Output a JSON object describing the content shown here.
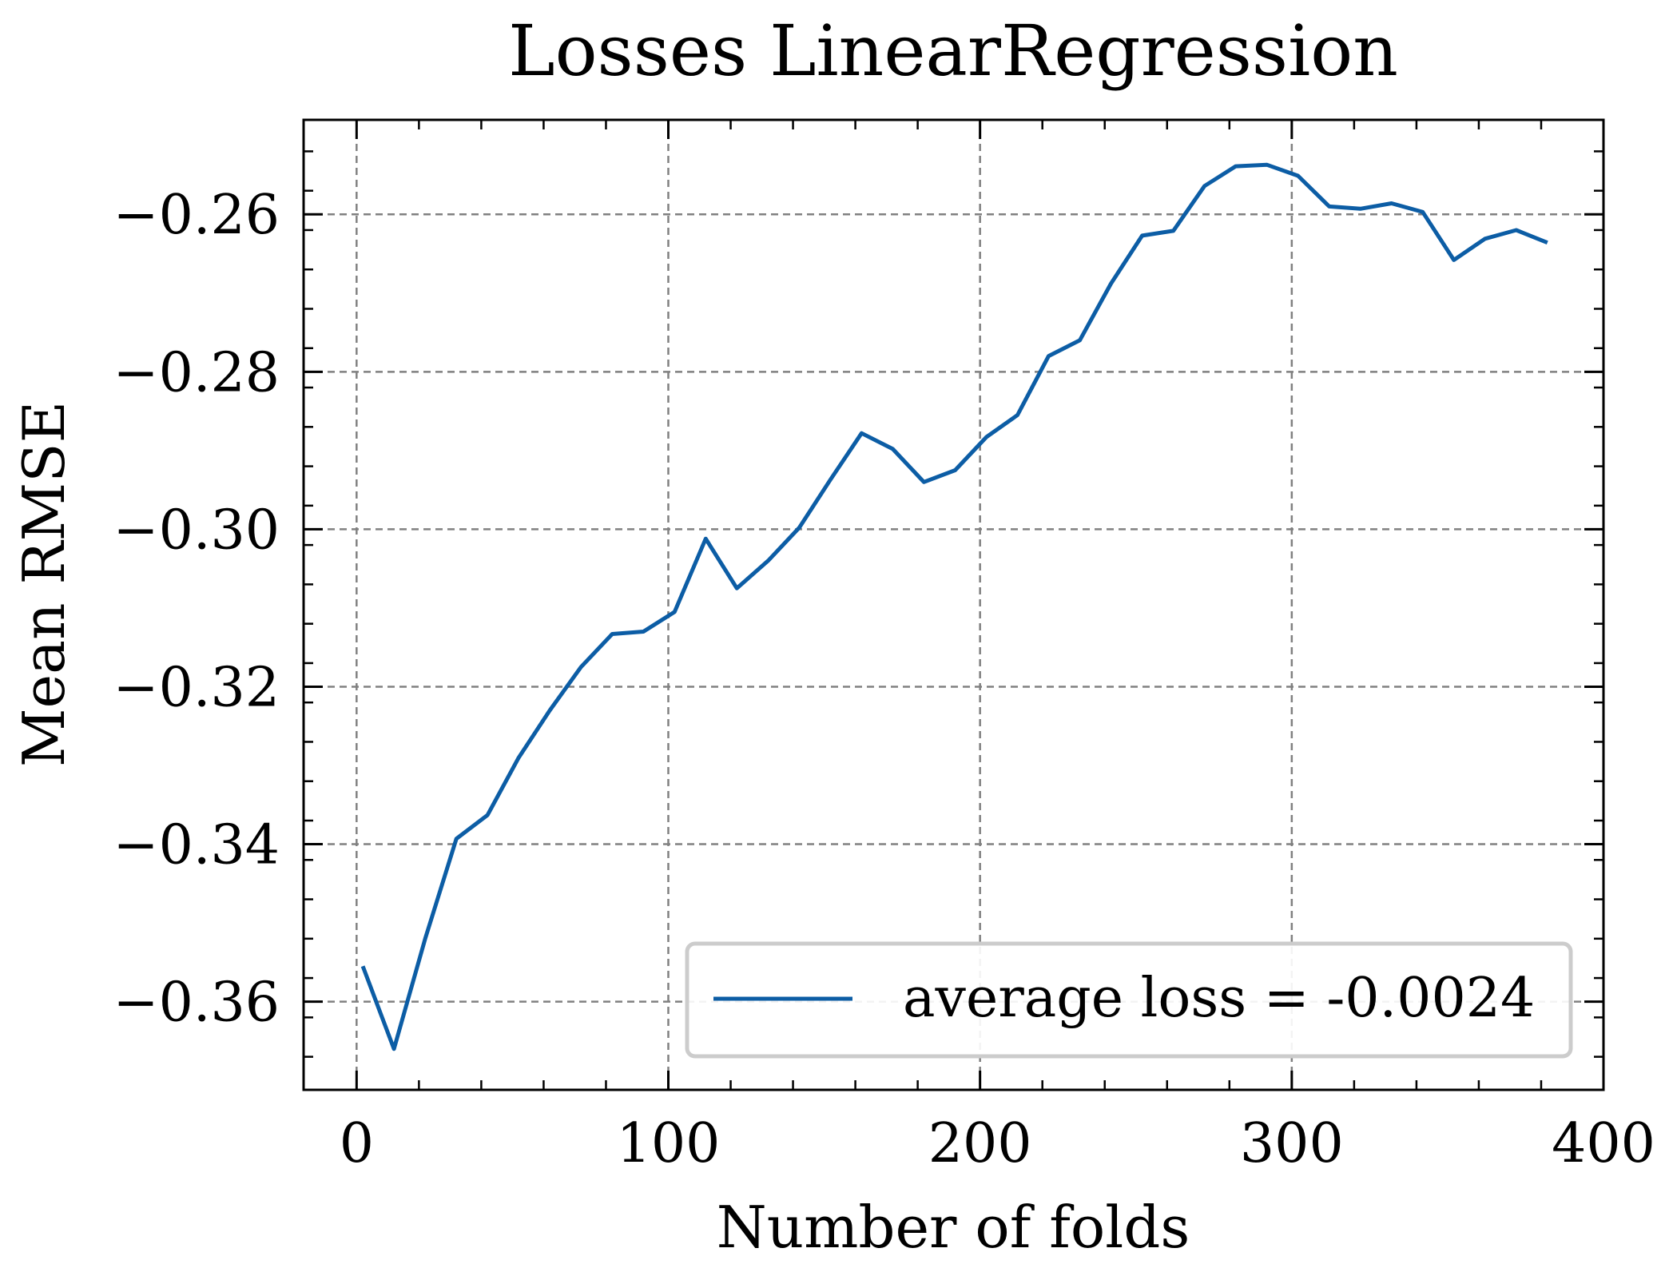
{
  "chart_data": {
    "type": "line",
    "title": "Losses LinearRegression",
    "xlabel": "Number of folds",
    "ylabel": "Mean RMSE",
    "xlim": [
      -17,
      400
    ],
    "ylim": [
      -0.3712,
      -0.248
    ],
    "x_ticks": [
      0,
      100,
      200,
      300,
      400
    ],
    "x_tick_labels": [
      "0",
      "100",
      "200",
      "300",
      "400"
    ],
    "y_ticks": [
      -0.36,
      -0.34,
      -0.32,
      -0.3,
      -0.28,
      -0.26
    ],
    "y_tick_labels": [
      "−0.36",
      "−0.34",
      "−0.32",
      "−0.30",
      "−0.28",
      "−0.26"
    ],
    "grid": true,
    "legend_position": "lower-right",
    "colors": {
      "series": "#0C5DA5",
      "grid": "#808080",
      "axis": "#000000"
    },
    "series": [
      {
        "name": "average loss = -0.0024",
        "x": [
          2,
          12,
          22,
          32,
          42,
          52,
          62,
          72,
          82,
          92,
          102,
          112,
          122,
          132,
          142,
          152,
          162,
          172,
          182,
          192,
          202,
          212,
          222,
          232,
          242,
          252,
          262,
          272,
          282,
          292,
          302,
          312,
          322,
          332,
          342,
          352,
          362,
          372,
          382
        ],
        "y": [
          -0.3555,
          -0.366,
          -0.352,
          -0.3393,
          -0.3363,
          -0.329,
          -0.323,
          -0.3175,
          -0.3133,
          -0.313,
          -0.3105,
          -0.3012,
          -0.3075,
          -0.304,
          -0.2998,
          -0.2937,
          -0.2878,
          -0.2898,
          -0.294,
          -0.2925,
          -0.2883,
          -0.2855,
          -0.278,
          -0.276,
          -0.2688,
          -0.2627,
          -0.2621,
          -0.2564,
          -0.2539,
          -0.2537,
          -0.2551,
          -0.259,
          -0.2593,
          -0.2586,
          -0.2597,
          -0.2658,
          -0.2631,
          -0.262,
          -0.2636
        ]
      }
    ]
  }
}
